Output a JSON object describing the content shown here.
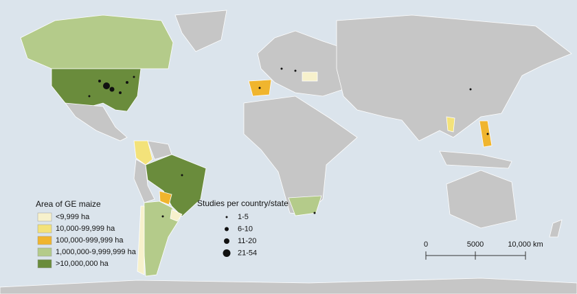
{
  "legend_area": {
    "title": "Area of GE maize",
    "items": [
      {
        "label": "<9,999 ha",
        "color": "#f7f1cc"
      },
      {
        "label": "10,000-99,999 ha",
        "color": "#f3e27a"
      },
      {
        "label": "100,000-999,999 ha",
        "color": "#f0b52e"
      },
      {
        "label": "1,000,000-9,999,999 ha",
        "color": "#b4cb8a"
      },
      {
        "label": ">10,000,000 ha",
        "color": "#6a8c3c"
      }
    ]
  },
  "legend_studies": {
    "title": "Studies per country/state",
    "items": [
      "1-5",
      "6-10",
      "11-20",
      "21-54"
    ]
  },
  "scale_bar": {
    "labels": [
      "0",
      "5000",
      "10,000 km"
    ]
  }
}
